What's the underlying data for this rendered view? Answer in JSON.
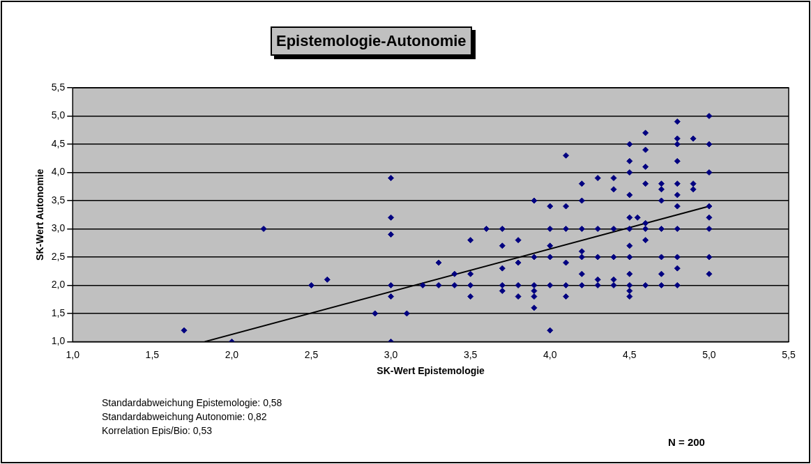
{
  "chart_data": {
    "type": "scatter",
    "title": "Epistemologie-Autonomie",
    "xlabel": "SK-Wert Epistemologie",
    "ylabel": "SK-Wert Autonomie",
    "xlim": [
      1.0,
      5.5
    ],
    "xticks": [
      {
        "value": 1.0,
        "label": "1,0"
      },
      {
        "value": 1.5,
        "label": "1,5"
      },
      {
        "value": 2.0,
        "label": "2,0"
      },
      {
        "value": 2.5,
        "label": "2,5"
      },
      {
        "value": 3.0,
        "label": "3,0"
      },
      {
        "value": 3.5,
        "label": "3,5"
      },
      {
        "value": 4.0,
        "label": "4,0"
      },
      {
        "value": 4.5,
        "label": "4,5"
      },
      {
        "value": 5.0,
        "label": "5,0"
      },
      {
        "value": 5.5,
        "label": "5,5"
      }
    ],
    "ylim": [
      1.0,
      5.5
    ],
    "yticks": [
      {
        "value": 1.0,
        "label": "1,0"
      },
      {
        "value": 1.5,
        "label": "1,5"
      },
      {
        "value": 2.0,
        "label": "2,0"
      },
      {
        "value": 2.5,
        "label": "2,5"
      },
      {
        "value": 3.0,
        "label": "3,0"
      },
      {
        "value": 3.5,
        "label": "3,5"
      },
      {
        "value": 4.0,
        "label": "4,0"
      },
      {
        "value": 4.5,
        "label": "4,5"
      },
      {
        "value": 5.0,
        "label": "5,0"
      },
      {
        "value": 5.5,
        "label": "5,5"
      }
    ],
    "grid": "y",
    "legend": false,
    "marker": "diamond",
    "series": [
      {
        "color": "#000080",
        "x": [
          1.7,
          2.2,
          2.5,
          2.6,
          2.0,
          3.0,
          3.0,
          3.0,
          3.0,
          3.0,
          3.0,
          2.9,
          3.1,
          3.2,
          3.3,
          3.3,
          3.4,
          3.4,
          3.5,
          3.5,
          3.5,
          3.5,
          3.6,
          3.7,
          3.7,
          3.7,
          3.7,
          3.7,
          3.8,
          3.8,
          3.8,
          3.8,
          3.9,
          3.9,
          3.9,
          3.9,
          3.9,
          3.9,
          4.0,
          4.0,
          4.0,
          4.0,
          4.0,
          4.0,
          4.1,
          4.1,
          4.1,
          4.1,
          4.1,
          4.1,
          4.2,
          4.2,
          4.2,
          4.2,
          4.2,
          4.2,
          4.2,
          4.3,
          4.3,
          4.3,
          4.3,
          4.3,
          4.4,
          4.4,
          4.4,
          4.4,
          4.4,
          4.4,
          4.5,
          4.5,
          4.5,
          4.5,
          4.5,
          4.5,
          4.5,
          4.5,
          4.5,
          4.5,
          4.5,
          4.5,
          4.55,
          4.6,
          4.6,
          4.6,
          4.6,
          4.6,
          4.6,
          4.6,
          4.6,
          4.7,
          4.7,
          4.7,
          4.7,
          4.7,
          4.7,
          4.7,
          4.8,
          4.8,
          4.8,
          4.8,
          4.8,
          4.8,
          4.8,
          4.8,
          4.8,
          4.8,
          4.8,
          4.9,
          4.9,
          4.9,
          5.0,
          5.0,
          5.0,
          5.0,
          5.0,
          5.0,
          5.0,
          5.0
        ],
        "values": [
          1.2,
          3.0,
          2.0,
          2.1,
          1.0,
          3.2,
          3.9,
          2.9,
          2.0,
          1.8,
          1.0,
          1.5,
          1.5,
          2.0,
          2.4,
          2.0,
          2.2,
          2.0,
          2.8,
          2.2,
          2.0,
          1.8,
          3.0,
          3.0,
          2.7,
          2.3,
          2.0,
          1.9,
          2.8,
          2.4,
          2.0,
          1.8,
          2.5,
          2.0,
          1.9,
          1.8,
          1.6,
          3.5,
          3.0,
          2.7,
          2.5,
          2.0,
          1.2,
          3.4,
          4.3,
          3.0,
          2.0,
          1.8,
          3.4,
          2.4,
          3.8,
          3.0,
          2.6,
          2.5,
          2.0,
          3.5,
          2.2,
          3.0,
          2.5,
          2.0,
          3.9,
          2.1,
          3.7,
          3.0,
          2.5,
          2.0,
          3.9,
          2.1,
          4.5,
          4.2,
          3.6,
          3.2,
          3.0,
          2.7,
          2.5,
          2.0,
          1.9,
          1.8,
          4.0,
          2.2,
          3.2,
          4.4,
          3.8,
          3.1,
          3.0,
          2.0,
          4.7,
          2.8,
          4.1,
          3.8,
          3.7,
          3.0,
          2.5,
          2.0,
          3.5,
          2.2,
          4.9,
          4.5,
          4.2,
          3.8,
          3.6,
          3.0,
          2.5,
          2.0,
          4.6,
          3.4,
          2.3,
          3.8,
          3.7,
          4.6,
          5.0,
          4.5,
          3.2,
          3.0,
          2.5,
          4.0,
          3.4,
          2.2
        ]
      },
      {
        "type": "line",
        "color": "#000000",
        "marker": "none",
        "x": [
          1.83,
          5.0
        ],
        "values": [
          1.0,
          3.4
        ]
      }
    ],
    "annotations": [
      "Standardabweichung Epistemologie: 0,58",
      "Standardabweichung Autonomie: 0,82",
      "Korrelation Epis/Bio: 0,53",
      "N = 200"
    ]
  }
}
